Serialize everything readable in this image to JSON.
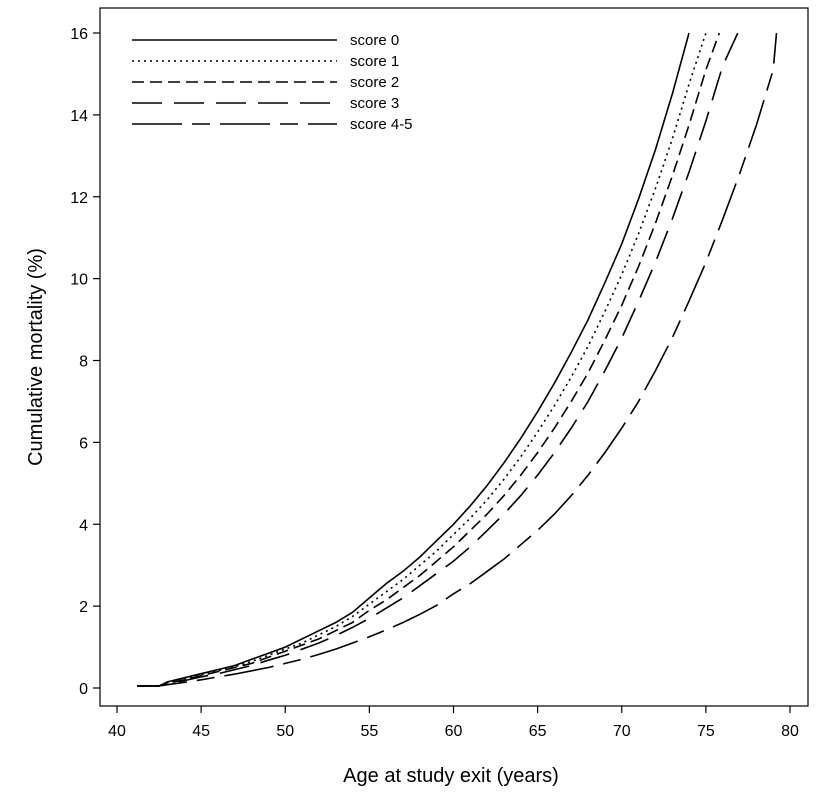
{
  "chart_data": {
    "type": "line",
    "title": "",
    "xlabel": "Age at study exit (years)",
    "ylabel": "Cumulative mortality (%)",
    "xlim": [
      40,
      80
    ],
    "ylim": [
      0,
      16
    ],
    "xticks": [
      "40",
      "45",
      "50",
      "55",
      "60",
      "65",
      "70",
      "75",
      "80"
    ],
    "yticks": [
      "0",
      "2",
      "4",
      "6",
      "8",
      "10",
      "12",
      "14",
      "16"
    ],
    "grid": false,
    "legend_position": "top-left",
    "line_color": "#000000",
    "series": [
      {
        "name": "score 0",
        "dash": "solid",
        "x": [
          41.2,
          42.0,
          42.5,
          43,
          44,
          45,
          46,
          47,
          48,
          49,
          50,
          51,
          52,
          53,
          54,
          55,
          56,
          57,
          58,
          59,
          60,
          61,
          62,
          63,
          64,
          65,
          66,
          67,
          68,
          69,
          70,
          71,
          72,
          73,
          74
        ],
        "y": [
          0.05,
          0.05,
          0.05,
          0.15,
          0.25,
          0.35,
          0.45,
          0.55,
          0.7,
          0.85,
          1.0,
          1.2,
          1.4,
          1.6,
          1.85,
          2.2,
          2.55,
          2.85,
          3.2,
          3.6,
          4.0,
          4.45,
          4.95,
          5.5,
          6.1,
          6.75,
          7.45,
          8.2,
          9.0,
          9.9,
          10.85,
          11.95,
          13.15,
          14.5,
          16.0
        ]
      },
      {
        "name": "score 1",
        "dash": "dotted",
        "x": [
          41.2,
          42.0,
          42.5,
          43,
          44,
          45,
          46,
          47,
          48,
          49,
          50,
          51,
          52,
          53,
          54,
          55,
          56,
          57,
          58,
          59,
          60,
          61,
          62,
          63,
          64,
          65,
          66,
          67,
          68,
          69,
          70,
          71,
          72,
          73,
          74,
          75
        ],
        "y": [
          0.05,
          0.05,
          0.05,
          0.13,
          0.22,
          0.32,
          0.42,
          0.52,
          0.65,
          0.8,
          0.95,
          1.1,
          1.3,
          1.5,
          1.75,
          2.05,
          2.35,
          2.65,
          3.0,
          3.35,
          3.75,
          4.15,
          4.6,
          5.1,
          5.65,
          6.25,
          6.9,
          7.6,
          8.35,
          9.2,
          10.1,
          11.1,
          12.2,
          13.4,
          14.75,
          16.0
        ]
      },
      {
        "name": "score 2",
        "dash": "dashed",
        "x": [
          41.2,
          42.0,
          42.5,
          43,
          44,
          45,
          46,
          47,
          48,
          49,
          50,
          51,
          52,
          53,
          54,
          55,
          56,
          57,
          58,
          59,
          60,
          61,
          62,
          63,
          64,
          65,
          66,
          67,
          68,
          69,
          70,
          71,
          72,
          73,
          74,
          75,
          75.8
        ],
        "y": [
          0.05,
          0.05,
          0.05,
          0.12,
          0.2,
          0.3,
          0.4,
          0.5,
          0.6,
          0.75,
          0.9,
          1.05,
          1.2,
          1.4,
          1.6,
          1.9,
          2.15,
          2.45,
          2.75,
          3.1,
          3.45,
          3.85,
          4.25,
          4.7,
          5.2,
          5.75,
          6.35,
          7.0,
          7.7,
          8.5,
          9.35,
          10.3,
          11.35,
          12.5,
          13.75,
          15.1,
          16.0
        ]
      },
      {
        "name": "score 3",
        "dash": "long-dash",
        "x": [
          41.2,
          42.0,
          42.5,
          43,
          44,
          45,
          46,
          47,
          48,
          49,
          50,
          51,
          52,
          53,
          54,
          55,
          56,
          57,
          58,
          59,
          60,
          61,
          62,
          63,
          64,
          65,
          66,
          67,
          68,
          69,
          70,
          71,
          72,
          73,
          74,
          75,
          76,
          76.9
        ],
        "y": [
          0.05,
          0.05,
          0.05,
          0.1,
          0.18,
          0.27,
          0.35,
          0.45,
          0.55,
          0.68,
          0.8,
          0.95,
          1.1,
          1.28,
          1.48,
          1.7,
          1.95,
          2.2,
          2.5,
          2.8,
          3.1,
          3.45,
          3.85,
          4.25,
          4.7,
          5.2,
          5.75,
          6.35,
          7.0,
          7.75,
          8.55,
          9.45,
          10.4,
          11.45,
          12.6,
          13.85,
          15.2,
          16.0
        ]
      },
      {
        "name": "score 4-5",
        "dash": "long-short-dash",
        "x": [
          41.2,
          42.0,
          42.5,
          43,
          44,
          45,
          46,
          47,
          48,
          49,
          50,
          51,
          52,
          53,
          54,
          55,
          56,
          57,
          58,
          59,
          60,
          61,
          62,
          63,
          64,
          65,
          66,
          67,
          68,
          69,
          70,
          71,
          72,
          73,
          74,
          75,
          76,
          77,
          78,
          79,
          79.2
        ],
        "y": [
          0.05,
          0.05,
          0.05,
          0.08,
          0.14,
          0.2,
          0.27,
          0.34,
          0.42,
          0.5,
          0.6,
          0.7,
          0.82,
          0.95,
          1.1,
          1.25,
          1.42,
          1.6,
          1.8,
          2.02,
          2.3,
          2.55,
          2.85,
          3.15,
          3.5,
          3.85,
          4.25,
          4.7,
          5.2,
          5.75,
          6.35,
          7.0,
          7.75,
          8.55,
          9.45,
          10.4,
          11.45,
          12.55,
          13.75,
          15.1,
          16.0
        ]
      }
    ]
  }
}
